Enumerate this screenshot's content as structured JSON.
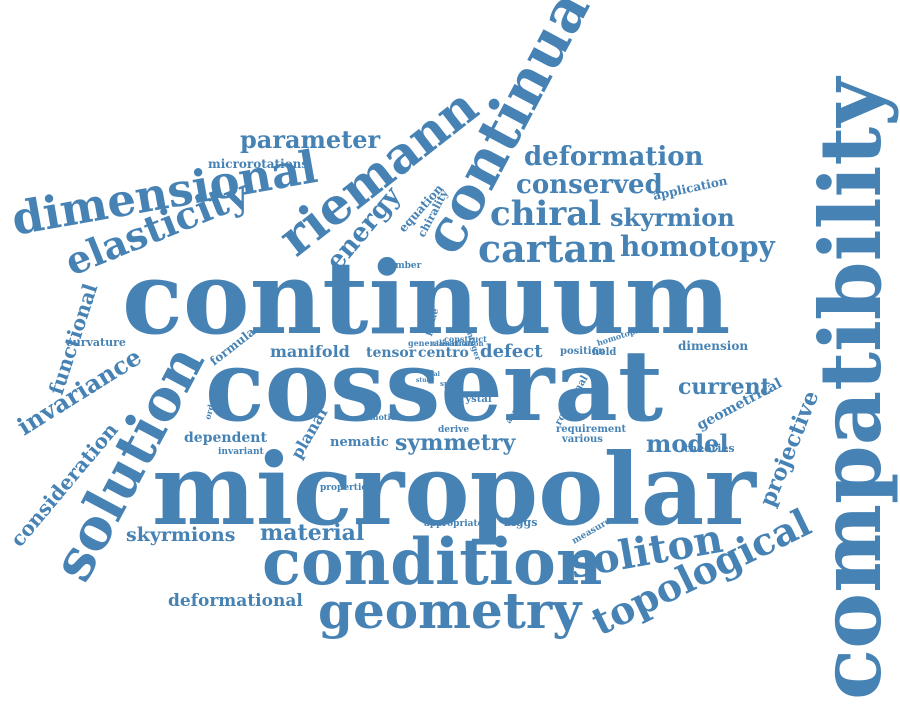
{
  "color": "#4682b4",
  "words": [
    "continuum",
    "cosserat",
    "micropolar",
    "compatibility",
    "condition",
    "geometry",
    "solution",
    "continua",
    "riemann",
    "dimensional",
    "elasticity",
    "soliton",
    "topological",
    "cartan",
    "chiral",
    "homotopy",
    "deformation",
    "conserved",
    "skyrmion",
    "parameter",
    "energy",
    "invariance",
    "consideration",
    "functional",
    "symmetry",
    "model",
    "current",
    "projective",
    "material",
    "skyrmions",
    "deformational",
    "manifold",
    "tensor",
    "centro",
    "defect",
    "dependent",
    "nematic",
    "planar",
    "geometrical",
    "microrotations",
    "application",
    "equation",
    "chirality",
    "dimension",
    "curvature",
    "formula",
    "theories",
    "biggs",
    "various",
    "number",
    "plane",
    "integer",
    "generalisation",
    "classification",
    "construct",
    "homotopic",
    "position",
    "field",
    "order",
    "motion",
    "space",
    "crystal",
    "derive",
    "approach",
    "rotational",
    "requirement",
    "invariant",
    "properties",
    "appropriate",
    "measure",
    "study",
    "axial"
  ]
}
